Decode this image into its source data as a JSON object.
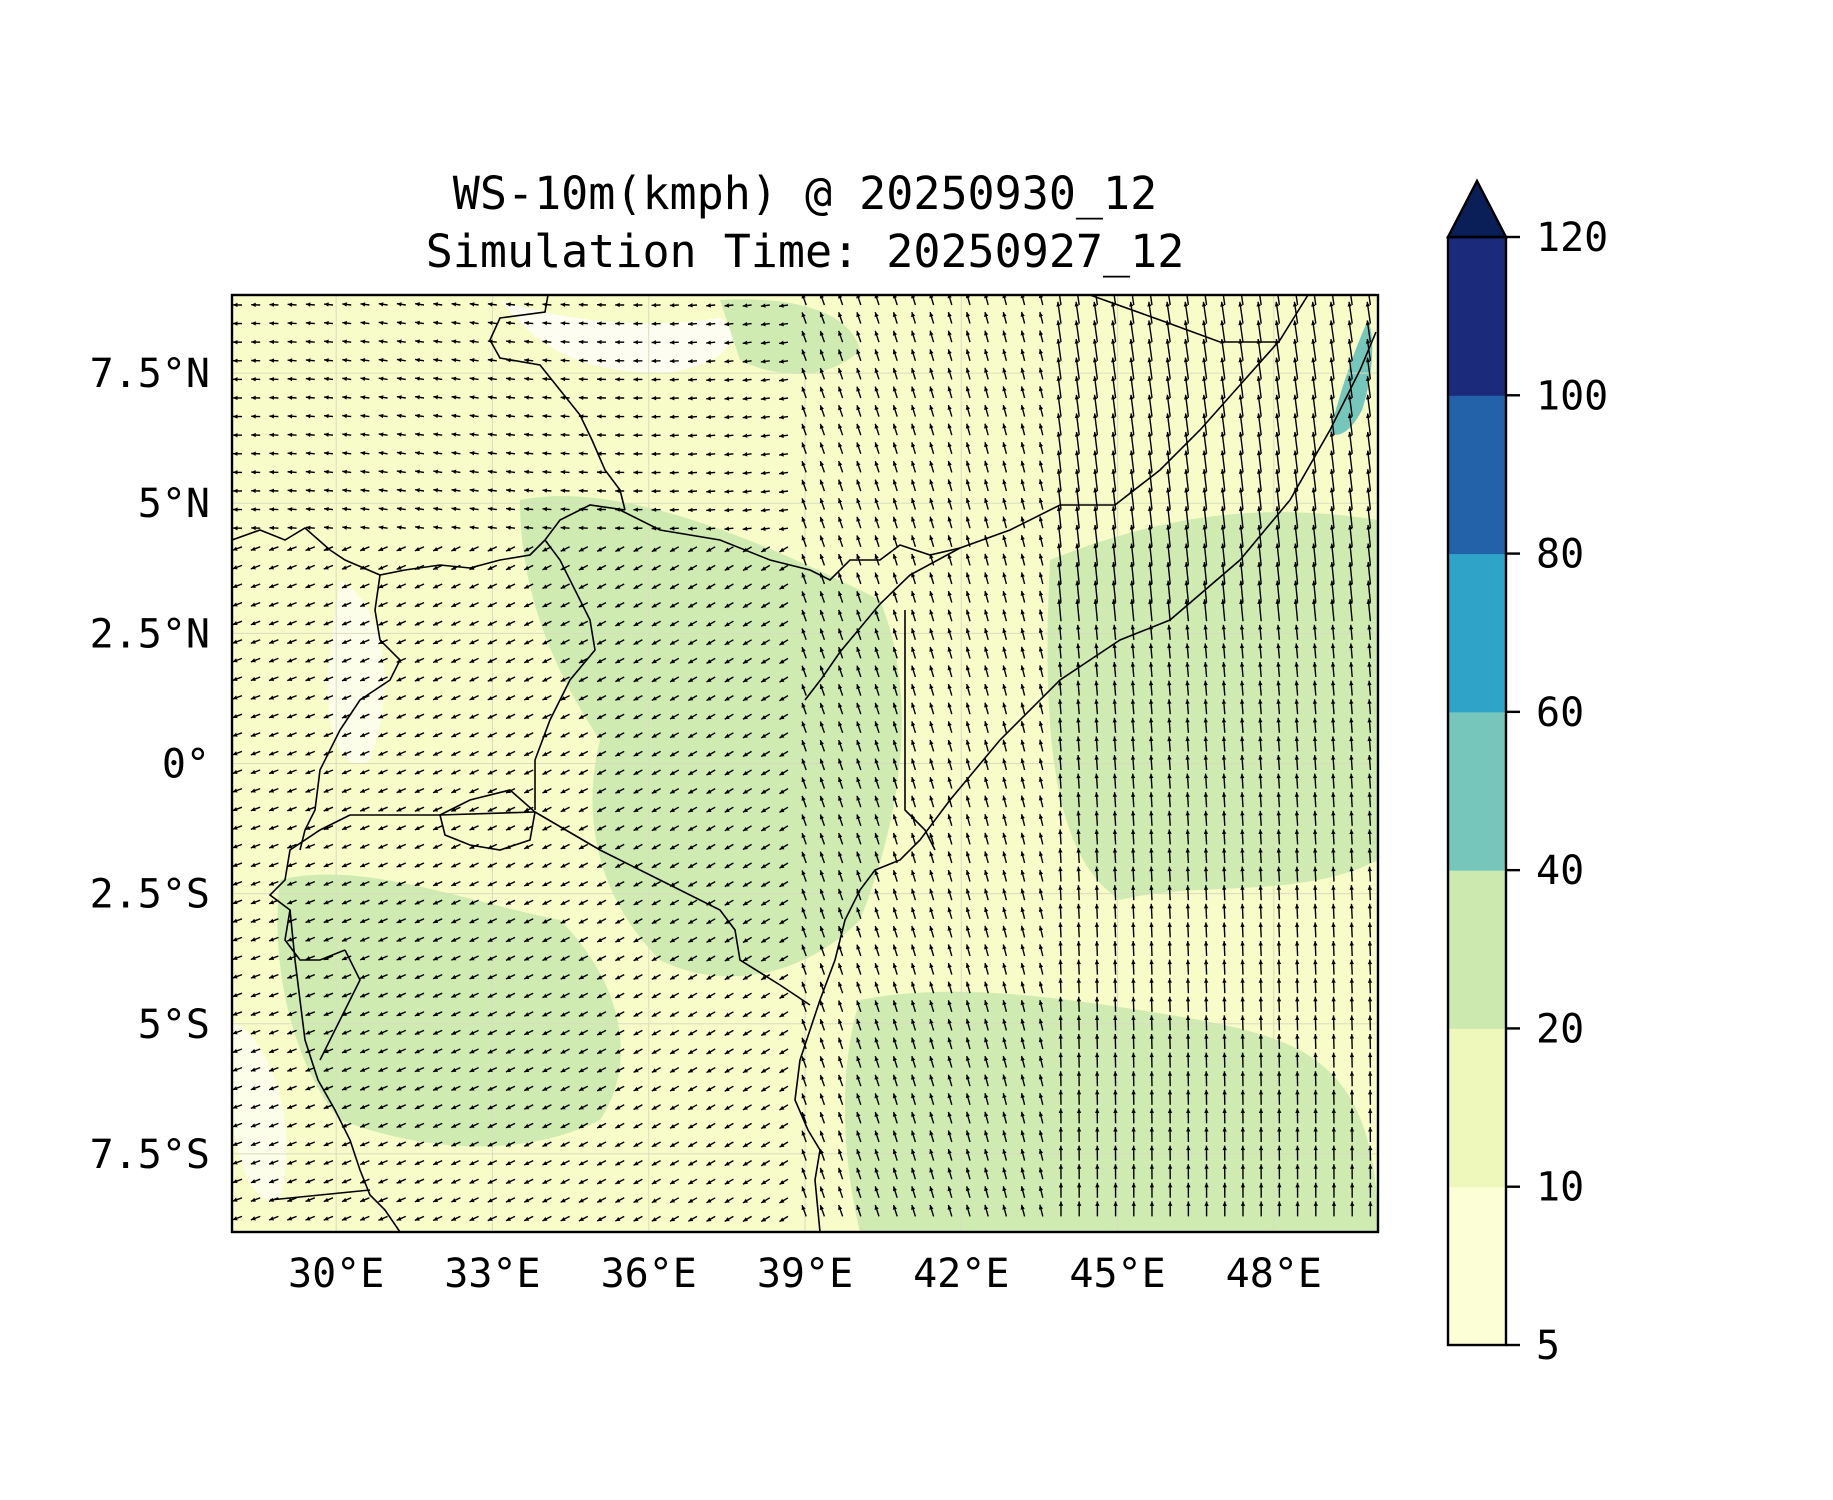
{
  "title": {
    "line1": "WS-10m(kmph) @ 20250930_12",
    "line2": "Simulation Time: 20250927_12"
  },
  "map": {
    "lon_range": [
      28.0,
      50.0
    ],
    "lat_range": [
      -9.0,
      9.0
    ],
    "x_ticks": [
      {
        "value": 30,
        "label": "30°E"
      },
      {
        "value": 33,
        "label": "33°E"
      },
      {
        "value": 36,
        "label": "36°E"
      },
      {
        "value": 39,
        "label": "39°E"
      },
      {
        "value": 42,
        "label": "42°E"
      },
      {
        "value": 45,
        "label": "45°E"
      },
      {
        "value": 48,
        "label": "48°E"
      }
    ],
    "y_ticks": [
      {
        "value": 7.5,
        "label": "7.5°N"
      },
      {
        "value": 5,
        "label": "5°N"
      },
      {
        "value": 2.5,
        "label": "2.5°N"
      },
      {
        "value": 0,
        "label": "0°"
      },
      {
        "value": -2.5,
        "label": "2.5°S"
      },
      {
        "value": -5,
        "label": "5°S"
      },
      {
        "value": -7.5,
        "label": "7.5°S"
      }
    ],
    "gridlines": true,
    "quiver": "wind direction arrows",
    "fill_colors": {
      "land_low": "#f7fcc8",
      "land_mid": "#edf8b9",
      "land_high": "#cfebb2",
      "highland": "#ffffff"
    }
  },
  "colorbar": {
    "levels": [
      5,
      10,
      20,
      40,
      60,
      80,
      100,
      120
    ],
    "labels": [
      "5",
      "10",
      "20",
      "40",
      "60",
      "80",
      "100",
      "120"
    ],
    "colors": [
      "#fcfed6",
      "#eef8bb",
      "#cceab0",
      "#77c6bc",
      "#2fa3c8",
      "#2361a8",
      "#1b2a7a"
    ],
    "extend_color": "#0a1f57",
    "extend": "max"
  }
}
